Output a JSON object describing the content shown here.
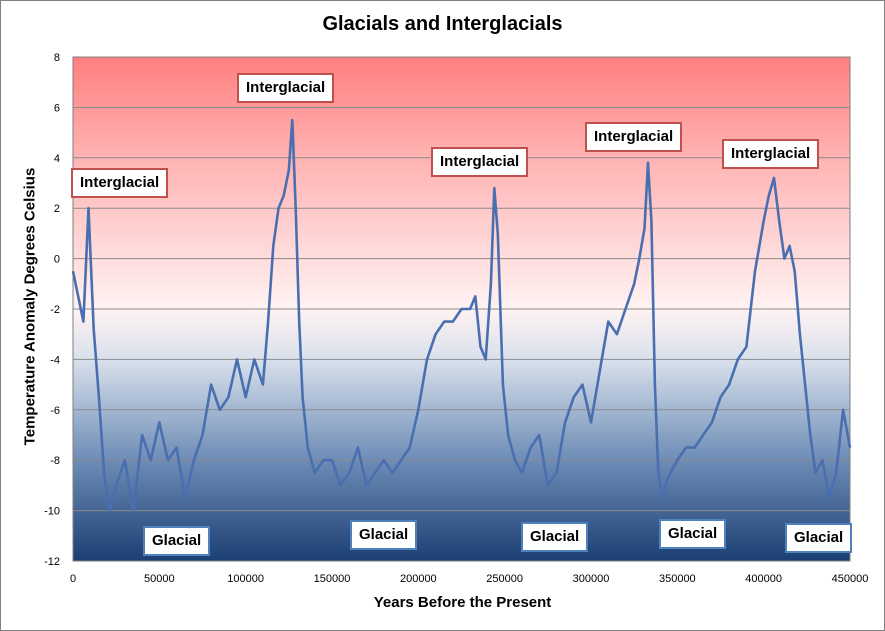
{
  "chart_data": {
    "type": "line",
    "title": "Glacials and Interglacials",
    "xlabel": "Years Before the Present",
    "ylabel": "Temperature Anomaly Degrees Celsius",
    "xlim": [
      0,
      450000
    ],
    "ylim": [
      -12,
      8
    ],
    "xticks": [
      0,
      50000,
      100000,
      150000,
      200000,
      250000,
      300000,
      350000,
      400000,
      450000
    ],
    "yticks": [
      8,
      6,
      4,
      2,
      0,
      -2,
      -4,
      -6,
      -8,
      -10,
      -12
    ],
    "grid": "horizontal",
    "background": "gradient red (top) to white (middle) to dark blue (bottom)",
    "colors": {
      "line": "#4a6fb0",
      "top": "#ff8080",
      "bottom": "#1c3f73",
      "red_border": "#c0504d",
      "blue_border": "#4f81bd"
    },
    "x": [
      0,
      3000,
      6000,
      9000,
      12000,
      15000,
      18000,
      21000,
      25000,
      30000,
      35000,
      40000,
      45000,
      50000,
      55000,
      60000,
      65000,
      70000,
      75000,
      80000,
      85000,
      90000,
      95000,
      100000,
      105000,
      110000,
      113000,
      116000,
      119000,
      122000,
      125000,
      127000,
      129000,
      131000,
      133000,
      136000,
      140000,
      145000,
      150000,
      155000,
      160000,
      165000,
      170000,
      175000,
      180000,
      185000,
      190000,
      195000,
      200000,
      205000,
      210000,
      215000,
      220000,
      225000,
      230000,
      233000,
      236000,
      239000,
      242000,
      244000,
      246000,
      249000,
      252000,
      256000,
      260000,
      265000,
      270000,
      275000,
      280000,
      285000,
      290000,
      295000,
      300000,
      305000,
      310000,
      315000,
      320000,
      325000,
      328000,
      331000,
      333000,
      335000,
      337000,
      339000,
      341000,
      343000,
      346000,
      350000,
      355000,
      360000,
      365000,
      370000,
      375000,
      380000,
      385000,
      390000,
      395000,
      400000,
      403000,
      406000,
      409000,
      412000,
      415000,
      418000,
      421000,
      424000,
      427000,
      430000,
      434000,
      438000,
      442000,
      446000,
      450000
    ],
    "values": [
      -0.5,
      -1.5,
      -2.5,
      2.0,
      -2.8,
      -5.5,
      -8.5,
      -10.0,
      -9.0,
      -8.0,
      -10.0,
      -7.0,
      -8.0,
      -6.5,
      -8.0,
      -7.5,
      -9.5,
      -8.0,
      -7.0,
      -5.0,
      -6.0,
      -5.5,
      -4.0,
      -5.5,
      -4.0,
      -5.0,
      -2.5,
      0.5,
      2.0,
      2.5,
      3.5,
      5.5,
      2.0,
      -2.5,
      -5.5,
      -7.5,
      -8.5,
      -8.0,
      -8.0,
      -9.0,
      -8.5,
      -7.5,
      -9.0,
      -8.5,
      -8.0,
      -8.5,
      -8.0,
      -7.5,
      -6.0,
      -4.0,
      -3.0,
      -2.5,
      -2.5,
      -2.0,
      -2.0,
      -1.5,
      -3.5,
      -4.0,
      -1.0,
      2.8,
      1.0,
      -5.0,
      -7.0,
      -8.0,
      -8.5,
      -7.5,
      -7.0,
      -9.0,
      -8.5,
      -6.5,
      -5.5,
      -5.0,
      -6.5,
      -4.5,
      -2.5,
      -3.0,
      -2.0,
      -1.0,
      0.0,
      1.2,
      3.8,
      1.5,
      -5.0,
      -8.5,
      -9.5,
      -9.0,
      -8.5,
      -8.0,
      -7.5,
      -7.5,
      -7.0,
      -6.5,
      -5.5,
      -5.0,
      -4.0,
      -3.5,
      -0.5,
      1.5,
      2.5,
      3.2,
      1.5,
      0.0,
      0.5,
      -0.5,
      -3.0,
      -5.0,
      -7.0,
      -8.5,
      -8.0,
      -9.5,
      -8.5,
      -6.0,
      -7.5
    ],
    "annotations": [
      {
        "text": "Interglacial",
        "style": "red"
      },
      {
        "text": "Interglacial",
        "style": "red"
      },
      {
        "text": "Interglacial",
        "style": "red"
      },
      {
        "text": "Interglacial",
        "style": "red"
      },
      {
        "text": "Interglacial",
        "style": "red"
      },
      {
        "text": "Glacial",
        "style": "blue"
      },
      {
        "text": "Glacial",
        "style": "blue"
      },
      {
        "text": "Glacial",
        "style": "blue"
      },
      {
        "text": "Glacial",
        "style": "blue"
      },
      {
        "text": "Glacial",
        "style": "blue"
      }
    ]
  }
}
